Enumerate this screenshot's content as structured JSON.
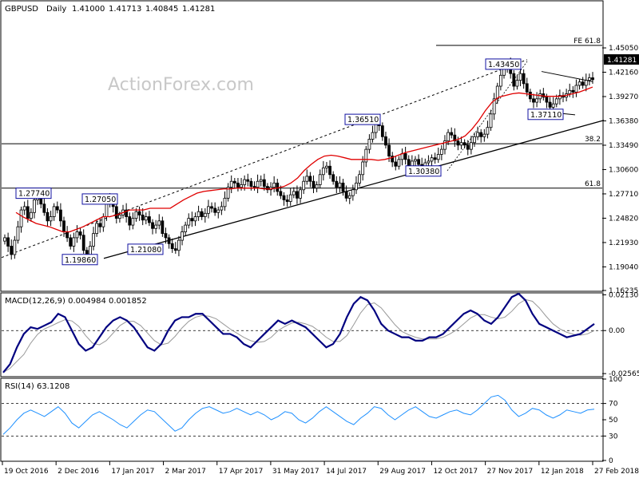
{
  "chart_data": [
    {
      "type": "candlestick",
      "symbol": "GBPUSD",
      "timeframe": "Daily",
      "ohlc": {
        "open": "1.41000",
        "high": "1.41713",
        "low": "1.40845",
        "close": "1.41281"
      },
      "watermark": "ActionForex.com",
      "ylim": [
        1.16235,
        1.5055
      ],
      "y_ticks": [
        "1.45050",
        "1.42160",
        "1.39270",
        "1.36380",
        "1.33490",
        "1.30600",
        "1.27710",
        "1.24820",
        "1.21930",
        "1.19040",
        "1.16235"
      ],
      "current_price_label": "1.41281",
      "x_ticks": [
        "19 Oct 2016",
        "2 Dec 2016",
        "17 Jan 2017",
        "2 Mar 2017",
        "17 Apr 2017",
        "31 May 2017",
        "14 Jul 2017",
        "29 Aug 2017",
        "12 Oct 2017",
        "27 Nov 2017",
        "12 Jan 2018",
        "27 Feb 2018"
      ],
      "annotations": [
        {
          "text": "1.27740",
          "price": 1.2774
        },
        {
          "text": "1.27050",
          "price": 1.2705
        },
        {
          "text": "1.19860",
          "price": 1.1986
        },
        {
          "text": "1.21080",
          "price": 1.2108
        },
        {
          "text": "1.36510",
          "price": 1.3651
        },
        {
          "text": "1.30380",
          "price": 1.3038
        },
        {
          "text": "1.43450",
          "price": 1.4345
        },
        {
          "text": "1.37110",
          "price": 1.3711
        }
      ],
      "levels": [
        {
          "label": "FE 61.8",
          "price": 1.4535
        },
        {
          "label": "38.2",
          "price": 1.3367
        },
        {
          "label": "61.8",
          "price": 1.2839
        }
      ],
      "close_series": [
        1.225,
        1.215,
        1.205,
        1.222,
        1.238,
        1.258,
        1.262,
        1.248,
        1.255,
        1.27,
        1.278,
        1.265,
        1.255,
        1.245,
        1.25,
        1.262,
        1.258,
        1.245,
        1.232,
        1.225,
        1.215,
        1.225,
        1.232,
        1.228,
        1.21,
        1.2,
        1.215,
        1.23,
        1.242,
        1.238,
        1.25,
        1.265,
        1.27,
        1.262,
        1.248,
        1.252,
        1.258,
        1.25,
        1.24,
        1.248,
        1.256,
        1.252,
        1.246,
        1.25,
        1.243,
        1.236,
        1.24,
        1.245,
        1.23,
        1.225,
        1.218,
        1.212,
        1.21,
        1.222,
        1.232,
        1.24,
        1.248,
        1.245,
        1.25,
        1.256,
        1.25,
        1.254,
        1.262,
        1.26,
        1.255,
        1.258,
        1.262,
        1.272,
        1.285,
        1.292,
        1.29,
        1.285,
        1.288,
        1.294,
        1.292,
        1.286,
        1.285,
        1.292,
        1.294,
        1.286,
        1.282,
        1.285,
        1.29,
        1.28,
        1.275,
        1.27,
        1.268,
        1.276,
        1.28,
        1.272,
        1.282,
        1.292,
        1.298,
        1.292,
        1.284,
        1.288,
        1.3,
        1.308,
        1.31,
        1.3,
        1.292,
        1.285,
        1.29,
        1.28,
        1.272,
        1.275,
        1.282,
        1.29,
        1.3,
        1.315,
        1.33,
        1.342,
        1.35,
        1.36,
        1.358,
        1.345,
        1.335,
        1.322,
        1.315,
        1.31,
        1.318,
        1.325,
        1.318,
        1.31,
        1.316,
        1.318,
        1.312,
        1.31,
        1.314,
        1.316,
        1.32,
        1.318,
        1.324,
        1.33,
        1.34,
        1.35,
        1.347,
        1.34,
        1.335,
        1.338,
        1.335,
        1.33,
        1.338,
        1.345,
        1.35,
        1.345,
        1.348,
        1.356,
        1.372,
        1.39,
        1.405,
        1.418,
        1.428,
        1.432,
        1.42,
        1.405,
        1.412,
        1.42,
        1.408,
        1.398,
        1.39,
        1.386,
        1.39,
        1.396,
        1.392,
        1.386,
        1.38,
        1.384,
        1.39,
        1.394,
        1.392,
        1.396,
        1.4,
        1.398,
        1.406,
        1.41,
        1.406,
        1.412,
        1.415,
        1.41281
      ],
      "ma_series": [
        1.255,
        1.25,
        1.246,
        1.242,
        1.24,
        1.238,
        1.235,
        1.232,
        1.232,
        1.235,
        1.238,
        1.242,
        1.246,
        1.25,
        1.25,
        1.252,
        1.255,
        1.258,
        1.258,
        1.258,
        1.26,
        1.26,
        1.26,
        1.26,
        1.265,
        1.27,
        1.274,
        1.278,
        1.28,
        1.281,
        1.282,
        1.283,
        1.283,
        1.284,
        1.284,
        1.284,
        1.284,
        1.283,
        1.283,
        1.284,
        1.286,
        1.29,
        1.296,
        1.305,
        1.312,
        1.318,
        1.322,
        1.323,
        1.322,
        1.32,
        1.318,
        1.318,
        1.318,
        1.318,
        1.317,
        1.318,
        1.32,
        1.323,
        1.326,
        1.328,
        1.33,
        1.332,
        1.334,
        1.336,
        1.338,
        1.34,
        1.342,
        1.346,
        1.354,
        1.364,
        1.376,
        1.386,
        1.392,
        1.394,
        1.396,
        1.397,
        1.396,
        1.395,
        1.394,
        1.393,
        1.393,
        1.393,
        1.394,
        1.396,
        1.398,
        1.401,
        1.404
      ],
      "macd": {
        "label": "MACD(12,26,9) 0.004984 0.001852",
        "ylim": [
          -0.027,
          0.022
        ],
        "y_ticks": [
          "0.021303",
          "0.00",
          "-0.02565"
        ],
        "series": [
          -0.025,
          -0.02,
          -0.01,
          -0.002,
          0.002,
          0.001,
          0.003,
          0.005,
          0.01,
          0.008,
          0.0,
          -0.008,
          -0.012,
          -0.01,
          -0.004,
          0.002,
          0.006,
          0.008,
          0.006,
          0.002,
          -0.004,
          -0.01,
          -0.012,
          -0.008,
          0.0,
          0.006,
          0.008,
          0.008,
          0.01,
          0.01,
          0.006,
          0.002,
          -0.002,
          -0.002,
          -0.004,
          -0.008,
          -0.01,
          -0.006,
          -0.002,
          0.002,
          0.006,
          0.004,
          0.006,
          0.004,
          0.002,
          -0.002,
          -0.006,
          -0.01,
          -0.008,
          -0.002,
          0.008,
          0.016,
          0.02,
          0.018,
          0.012,
          0.004,
          0.0,
          -0.002,
          -0.004,
          -0.004,
          -0.006,
          -0.006,
          -0.004,
          -0.004,
          -0.002,
          0.002,
          0.006,
          0.01,
          0.012,
          0.01,
          0.006,
          0.004,
          0.008,
          0.014,
          0.02,
          0.022,
          0.018,
          0.01,
          0.004,
          0.002,
          0.0,
          -0.002,
          -0.004,
          -0.003,
          -0.002,
          0.001,
          0.004
        ]
      },
      "rsi": {
        "label": "RSI(14) 63.1208",
        "ylim": [
          0,
          100
        ],
        "y_ticks": [
          "100",
          "70",
          "50",
          "30",
          "0"
        ],
        "series": [
          32,
          40,
          50,
          58,
          62,
          58,
          54,
          60,
          66,
          58,
          46,
          40,
          48,
          56,
          60,
          55,
          50,
          44,
          40,
          48,
          56,
          62,
          60,
          52,
          44,
          36,
          40,
          50,
          58,
          64,
          66,
          62,
          58,
          60,
          64,
          60,
          56,
          60,
          56,
          50,
          54,
          60,
          58,
          50,
          46,
          52,
          60,
          66,
          60,
          54,
          48,
          44,
          52,
          58,
          66,
          64,
          56,
          50,
          56,
          62,
          66,
          60,
          54,
          52,
          56,
          60,
          62,
          58,
          56,
          62,
          70,
          78,
          80,
          74,
          62,
          54,
          58,
          64,
          62,
          56,
          52,
          56,
          62,
          60,
          58,
          62,
          63
        ]
      }
    }
  ]
}
